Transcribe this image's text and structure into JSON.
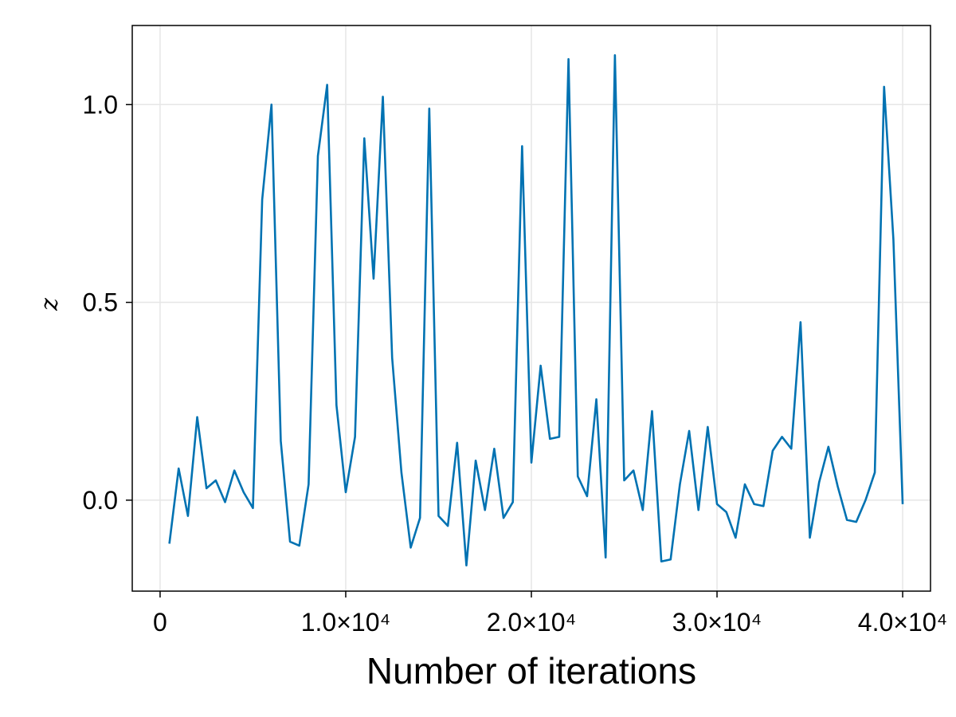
{
  "chart_data": {
    "type": "line",
    "title": "",
    "xlabel": "Number of iterations",
    "ylabel": "z",
    "xlim": [
      -1500,
      41500
    ],
    "ylim": [
      -0.23,
      1.2
    ],
    "grid": true,
    "colors": {
      "series": "#0072b2"
    },
    "xticks": [
      {
        "value": 0,
        "label": "0"
      },
      {
        "value": 10000,
        "label": "1.0×10⁴"
      },
      {
        "value": 20000,
        "label": "2.0×10⁴"
      },
      {
        "value": 30000,
        "label": "3.0×10⁴"
      },
      {
        "value": 40000,
        "label": "4.0×10⁴"
      }
    ],
    "yticks": [
      {
        "value": 0.0,
        "label": "0.0"
      },
      {
        "value": 0.5,
        "label": "0.5"
      },
      {
        "value": 1.0,
        "label": "1.0"
      }
    ],
    "series": [
      {
        "x": [
          500,
          1000,
          1500,
          2000,
          2500,
          3000,
          3500,
          4000,
          4500,
          5000,
          5500,
          6000,
          6500,
          7000,
          7500,
          8000,
          8500,
          9000,
          9500,
          10000,
          10500,
          11000,
          11500,
          12000,
          12500,
          13000,
          13500,
          14000,
          14500,
          15000,
          15500,
          16000,
          16500,
          17000,
          17500,
          18000,
          18500,
          19000,
          19500,
          20000,
          20500,
          21000,
          21500,
          22000,
          22500,
          23000,
          23500,
          24000,
          24500,
          25000,
          25500,
          26000,
          26500,
          27000,
          27500,
          28000,
          28500,
          29000,
          29500,
          30000,
          30500,
          31000,
          31500,
          32000,
          32500,
          33000,
          33500,
          34000,
          34500,
          35000,
          35500,
          36000,
          36500,
          37000,
          37500,
          38000,
          38500,
          39000,
          39500,
          40000
        ],
        "y": [
          -0.11,
          0.08,
          -0.04,
          0.21,
          0.03,
          0.05,
          -0.005,
          0.075,
          0.02,
          -0.02,
          0.76,
          1.0,
          0.15,
          -0.105,
          -0.115,
          0.04,
          0.87,
          1.05,
          0.24,
          0.02,
          0.16,
          0.915,
          0.56,
          1.02,
          0.36,
          0.07,
          -0.12,
          -0.045,
          0.99,
          -0.04,
          -0.065,
          0.145,
          -0.165,
          0.1,
          -0.025,
          0.13,
          -0.045,
          -0.005,
          0.895,
          0.095,
          0.34,
          0.155,
          0.16,
          1.115,
          0.06,
          0.01,
          0.255,
          -0.145,
          1.125,
          0.05,
          0.075,
          -0.025,
          0.225,
          -0.155,
          -0.15,
          0.04,
          0.175,
          -0.025,
          0.185,
          -0.01,
          -0.03,
          -0.095,
          0.04,
          -0.01,
          -0.015,
          0.125,
          0.16,
          0.13,
          0.45,
          -0.095,
          0.045,
          0.135,
          0.035,
          -0.05,
          -0.055,
          0.0,
          0.07,
          1.045,
          0.66,
          -0.01
        ]
      }
    ]
  }
}
